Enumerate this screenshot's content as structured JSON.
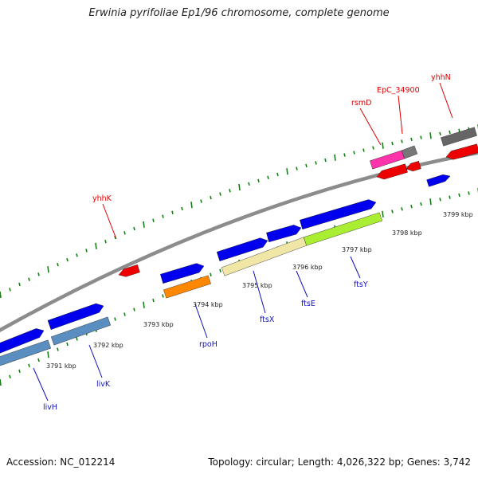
{
  "title": "Erwinia pyrifoliae Ep1/96 chromosome, complete genome",
  "footer": {
    "accession_label": "Accession:",
    "accession": "NC_012214",
    "topology_text": "Topology: circular; Length: 4,026,322 bp; Genes: 3,742"
  },
  "colors": {
    "forward_gene": "#0000ee",
    "reverse_gene": "#ee0000",
    "reverse_label": "#dd0000",
    "forward_label": "#1010bb",
    "backbone": "#888888",
    "ticks": "#1a7a1a"
  },
  "tick_labels": [
    {
      "text": "3791 kbp",
      "kbp": 3791
    },
    {
      "text": "3792 kbp",
      "kbp": 3792
    },
    {
      "text": "3793 kbp",
      "kbp": 3793
    },
    {
      "text": "3794 kbp",
      "kbp": 3794
    },
    {
      "text": "3795 kbp",
      "kbp": 3795
    },
    {
      "text": "3796 kbp",
      "kbp": 3796
    },
    {
      "text": "3797 kbp",
      "kbp": 3797
    },
    {
      "text": "3798 kbp",
      "kbp": 3798
    },
    {
      "text": "3799 kbp",
      "kbp": 3799
    }
  ],
  "gene_labels": {
    "reverse": [
      "yhhK",
      "rsmD",
      "EpC_34900",
      "yhhN"
    ],
    "forward": [
      "livH",
      "livK",
      "rpoH",
      "ftsX",
      "ftsE",
      "ftsY"
    ]
  },
  "features": [
    {
      "name": "livH",
      "strand": "+",
      "color": "#0000ee"
    },
    {
      "name": "livK",
      "strand": "+",
      "color": "#0000ee"
    },
    {
      "name": "rpoH",
      "strand": "+",
      "color": "#0000ee"
    },
    {
      "name": "ftsX",
      "strand": "+",
      "color": "#0000ee"
    },
    {
      "name": "ftsE",
      "strand": "+",
      "color": "#0000ee"
    },
    {
      "name": "ftsY",
      "strand": "+",
      "color": "#0000ee"
    },
    {
      "name": "yhhK",
      "strand": "-",
      "color": "#ee0000"
    },
    {
      "name": "rsmD",
      "strand": "-",
      "color": "#ee0000"
    },
    {
      "name": "EpC_34900",
      "strand": "-",
      "color": "#ee0000"
    },
    {
      "name": "yhhN",
      "strand": "-",
      "color": "#ee0000"
    }
  ]
}
